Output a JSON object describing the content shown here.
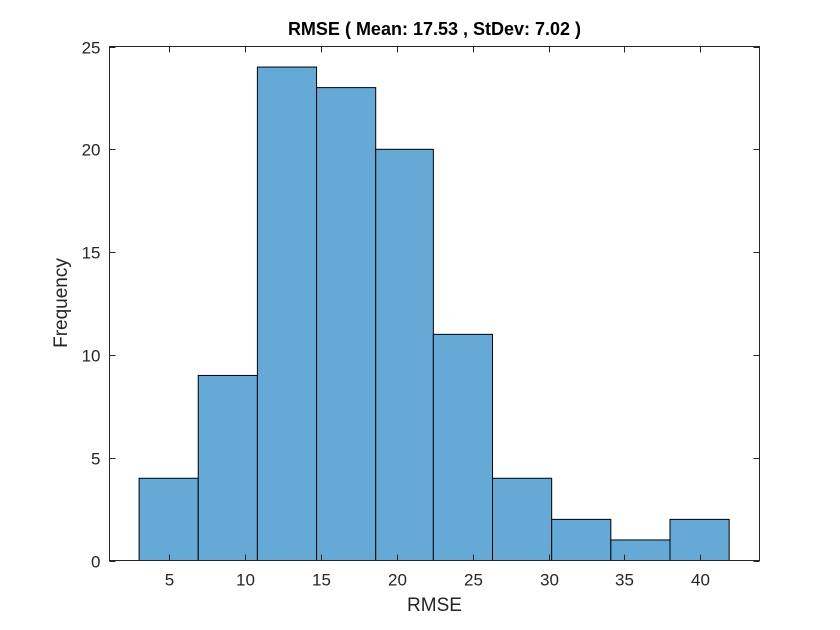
{
  "chart_data": {
    "type": "bar",
    "subtype": "histogram",
    "title": "RMSE ( Mean: 17.53 , StDev: 7.02 )",
    "xlabel": "RMSE",
    "ylabel": "Frequency",
    "bin_edges": [
      3.0,
      6.9,
      10.8,
      14.7,
      18.6,
      22.4,
      26.3,
      30.2,
      34.1,
      38.0,
      41.9
    ],
    "values": [
      4,
      9,
      24,
      23,
      20,
      11,
      4,
      2,
      1,
      2
    ],
    "xlim": [
      1.05,
      43.9
    ],
    "ylim": [
      0,
      25
    ],
    "xticks": [
      5,
      10,
      15,
      20,
      25,
      30,
      35,
      40
    ],
    "yticks": [
      0,
      5,
      10,
      15,
      20,
      25
    ],
    "grid": false,
    "legend": null,
    "colors": {
      "bar_fill": "#65a9d7",
      "bar_edge": "#000000",
      "axis": "#262626"
    }
  }
}
